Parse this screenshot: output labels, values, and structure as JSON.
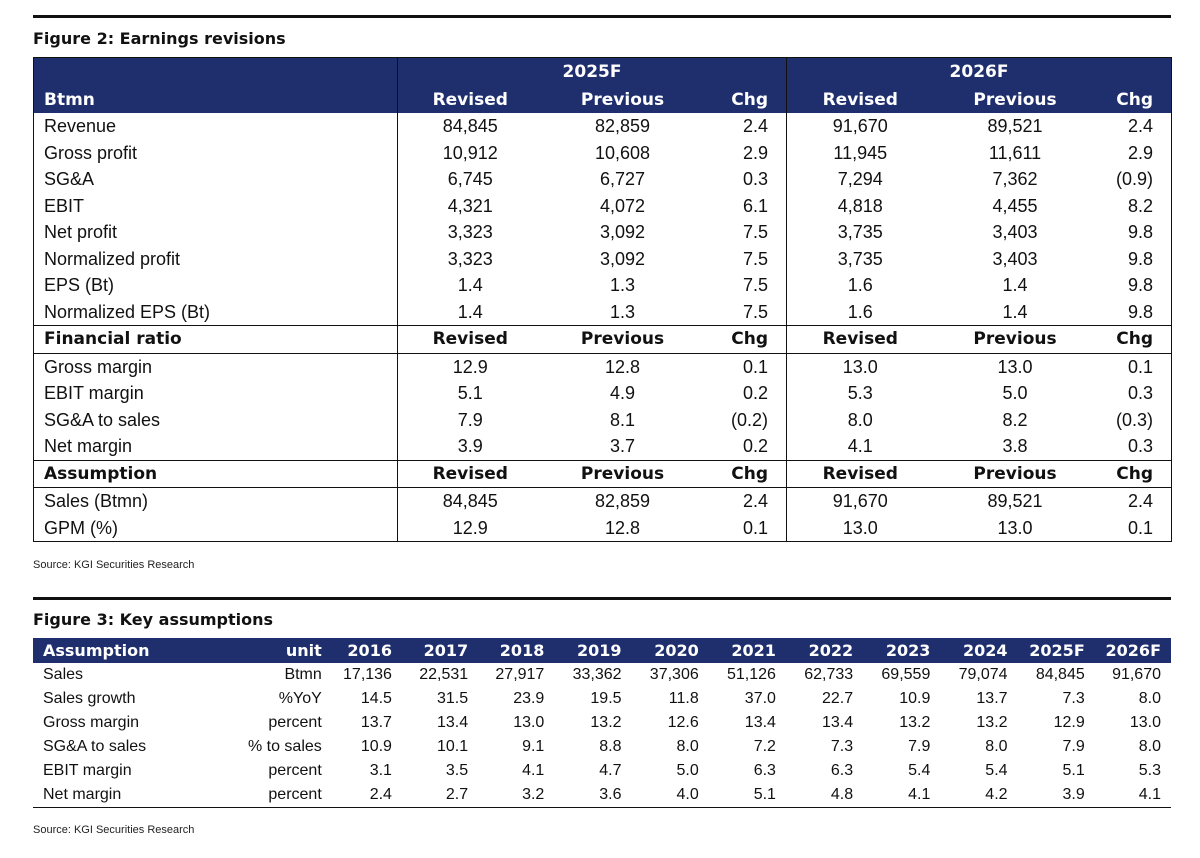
{
  "figure2": {
    "title": "Figure 2: Earnings revisions",
    "year1": "2025F",
    "year2": "2026F",
    "unit_label": "Btmn",
    "col_revised": "Revised",
    "col_previous": "Previous",
    "col_chg": "Chg",
    "rows": [
      {
        "label": "Revenue",
        "v": [
          "84,845",
          "82,859",
          "2.4",
          "91,670",
          "89,521",
          "2.4"
        ]
      },
      {
        "label": "Gross profit",
        "v": [
          "10,912",
          "10,608",
          "2.9",
          "11,945",
          "11,611",
          "2.9"
        ]
      },
      {
        "label": "SG&A",
        "v": [
          "6,745",
          "6,727",
          "0.3",
          "7,294",
          "7,362",
          "(0.9)"
        ]
      },
      {
        "label": "EBIT",
        "v": [
          "4,321",
          "4,072",
          "6.1",
          "4,818",
          "4,455",
          "8.2"
        ]
      },
      {
        "label": "Net profit",
        "v": [
          "3,323",
          "3,092",
          "7.5",
          "3,735",
          "3,403",
          "9.8"
        ]
      },
      {
        "label": "Normalized profit",
        "v": [
          "3,323",
          "3,092",
          "7.5",
          "3,735",
          "3,403",
          "9.8"
        ]
      },
      {
        "label": "EPS (Bt)",
        "v": [
          "1.4",
          "1.3",
          "7.5",
          "1.6",
          "1.4",
          "9.8"
        ]
      },
      {
        "label": "Normalized EPS (Bt)",
        "v": [
          "1.4",
          "1.3",
          "7.5",
          "1.6",
          "1.4",
          "9.8"
        ]
      }
    ],
    "section_ratio": {
      "label": "Financial ratio",
      "rows": [
        {
          "label": "Gross margin",
          "v": [
            "12.9",
            "12.8",
            "0.1",
            "13.0",
            "13.0",
            "0.1"
          ]
        },
        {
          "label": "EBIT margin",
          "v": [
            "5.1",
            "4.9",
            "0.2",
            "5.3",
            "5.0",
            "0.3"
          ]
        },
        {
          "label": "SG&A to sales",
          "v": [
            "7.9",
            "8.1",
            "(0.2)",
            "8.0",
            "8.2",
            "(0.3)"
          ]
        },
        {
          "label": "Net margin",
          "v": [
            "3.9",
            "3.7",
            "0.2",
            "4.1",
            "3.8",
            "0.3"
          ]
        }
      ]
    },
    "section_assumption": {
      "label": "Assumption",
      "rows": [
        {
          "label": "Sales (Btmn)",
          "v": [
            "84,845",
            "82,859",
            "2.4",
            "91,670",
            "89,521",
            "2.4"
          ]
        },
        {
          "label": "GPM (%)",
          "v": [
            "12.9",
            "12.8",
            "0.1",
            "13.0",
            "13.0",
            "0.1"
          ]
        }
      ]
    },
    "source": "Source: KGI Securities Research"
  },
  "figure3": {
    "title": "Figure 3: Key assumptions",
    "header": [
      "Assumption",
      "unit",
      "2016",
      "2017",
      "2018",
      "2019",
      "2020",
      "2021",
      "2022",
      "2023",
      "2024",
      "2025F",
      "2026F"
    ],
    "rows": [
      [
        "Sales",
        "Btmn",
        "17,136",
        "22,531",
        "27,917",
        "33,362",
        "37,306",
        "51,126",
        "62,733",
        "69,559",
        "79,074",
        "84,845",
        "91,670"
      ],
      [
        "Sales growth",
        "%YoY",
        "14.5",
        "31.5",
        "23.9",
        "19.5",
        "11.8",
        "37.0",
        "22.7",
        "10.9",
        "13.7",
        "7.3",
        "8.0"
      ],
      [
        "Gross margin",
        "percent",
        "13.7",
        "13.4",
        "13.0",
        "13.2",
        "12.6",
        "13.4",
        "13.4",
        "13.2",
        "13.2",
        "12.9",
        "13.0"
      ],
      [
        "SG&A to sales",
        "% to sales",
        "10.9",
        "10.1",
        "9.1",
        "8.8",
        "8.0",
        "7.2",
        "7.3",
        "7.9",
        "8.0",
        "7.9",
        "8.0"
      ],
      [
        "EBIT margin",
        "percent",
        "3.1",
        "3.5",
        "4.1",
        "4.7",
        "5.0",
        "6.3",
        "6.3",
        "5.4",
        "5.4",
        "5.1",
        "5.3"
      ],
      [
        "Net margin",
        "percent",
        "2.4",
        "2.7",
        "3.2",
        "3.6",
        "4.0",
        "5.1",
        "4.8",
        "4.1",
        "4.2",
        "3.9",
        "4.1"
      ]
    ],
    "source": "Source: KGI Securities Research"
  }
}
